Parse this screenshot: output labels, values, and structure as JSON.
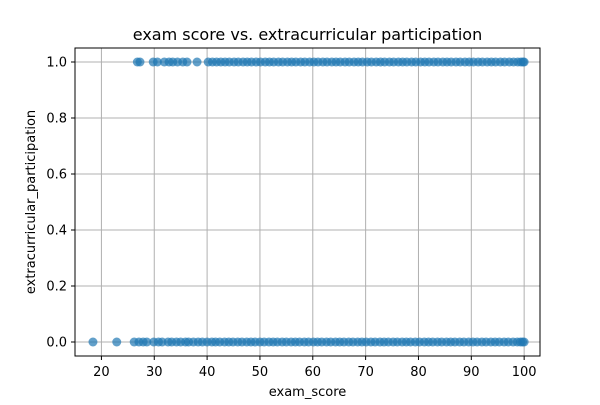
{
  "chart_data": {
    "type": "scatter",
    "title": "exam score vs. extracurricular participation",
    "xlabel": "exam_score",
    "ylabel": "extracurricular_participation",
    "xlim": [
      15,
      103
    ],
    "ylim": [
      -0.05,
      1.05
    ],
    "x_ticks": [
      20,
      30,
      40,
      50,
      60,
      70,
      80,
      90,
      100
    ],
    "x_tick_labels": [
      "20",
      "30",
      "40",
      "50",
      "60",
      "70",
      "80",
      "90",
      "100"
    ],
    "y_ticks": [
      0.0,
      0.2,
      0.4,
      0.6,
      0.8,
      1.0
    ],
    "y_tick_labels": [
      "0.0",
      "0.2",
      "0.4",
      "0.6",
      "0.8",
      "1.0"
    ],
    "grid": true,
    "marker_color": "#1f77b4",
    "series": [
      {
        "points": [
          [
            18.4,
            0
          ],
          [
            22.9,
            0
          ],
          [
            26.2,
            0
          ],
          [
            27.1,
            0
          ],
          [
            27.9,
            0
          ],
          [
            28.6,
            0
          ],
          [
            29.9,
            0
          ],
          [
            30.8,
            0
          ],
          [
            31.5,
            0
          ],
          [
            32.6,
            0
          ],
          [
            33.3,
            0
          ],
          [
            34.2,
            0
          ],
          [
            35.0,
            0
          ],
          [
            35.9,
            0
          ],
          [
            36.5,
            0
          ],
          [
            37.4,
            0
          ],
          [
            38.3,
            0
          ],
          [
            39.1,
            0
          ],
          [
            40.0,
            0
          ],
          [
            40.9,
            0
          ],
          [
            41.6,
            0
          ],
          [
            42.4,
            0
          ],
          [
            43.3,
            0
          ],
          [
            44.1,
            0
          ],
          [
            44.9,
            0
          ],
          [
            45.8,
            0
          ],
          [
            46.6,
            0
          ],
          [
            47.5,
            0
          ],
          [
            48.3,
            0
          ],
          [
            49.1,
            0
          ],
          [
            50.0,
            0
          ],
          [
            50.8,
            0
          ],
          [
            51.7,
            0
          ],
          [
            52.5,
            0
          ],
          [
            53.3,
            0
          ],
          [
            54.2,
            0
          ],
          [
            55.0,
            0
          ],
          [
            55.9,
            0
          ],
          [
            56.7,
            0
          ],
          [
            57.5,
            0
          ],
          [
            58.4,
            0
          ],
          [
            59.2,
            0
          ],
          [
            60.1,
            0
          ],
          [
            60.9,
            0
          ],
          [
            61.7,
            0
          ],
          [
            62.6,
            0
          ],
          [
            63.4,
            0
          ],
          [
            64.3,
            0
          ],
          [
            65.1,
            0
          ],
          [
            65.9,
            0
          ],
          [
            66.8,
            0
          ],
          [
            67.6,
            0
          ],
          [
            68.5,
            0
          ],
          [
            69.3,
            0
          ],
          [
            70.1,
            0
          ],
          [
            71.0,
            0
          ],
          [
            71.8,
            0
          ],
          [
            72.7,
            0
          ],
          [
            73.5,
            0
          ],
          [
            74.3,
            0
          ],
          [
            75.2,
            0
          ],
          [
            76.0,
            0
          ],
          [
            76.9,
            0
          ],
          [
            77.7,
            0
          ],
          [
            78.5,
            0
          ],
          [
            79.4,
            0
          ],
          [
            80.2,
            0
          ],
          [
            81.1,
            0
          ],
          [
            81.9,
            0
          ],
          [
            82.7,
            0
          ],
          [
            83.6,
            0
          ],
          [
            84.4,
            0
          ],
          [
            85.3,
            0
          ],
          [
            86.1,
            0
          ],
          [
            86.9,
            0
          ],
          [
            87.8,
            0
          ],
          [
            88.6,
            0
          ],
          [
            89.5,
            0
          ],
          [
            90.3,
            0
          ],
          [
            91.1,
            0
          ],
          [
            92.0,
            0
          ],
          [
            92.8,
            0
          ],
          [
            93.7,
            0
          ],
          [
            94.5,
            0
          ],
          [
            95.3,
            0
          ],
          [
            96.2,
            0
          ],
          [
            97.0,
            0
          ],
          [
            97.9,
            0
          ],
          [
            98.7,
            0
          ],
          [
            99.3,
            0
          ],
          [
            99.7,
            0
          ],
          [
            100.0,
            0
          ],
          [
            26.8,
            1
          ],
          [
            27.3,
            1
          ],
          [
            29.8,
            1
          ],
          [
            30.6,
            1
          ],
          [
            31.9,
            1
          ],
          [
            32.8,
            1
          ],
          [
            33.5,
            1
          ],
          [
            34.4,
            1
          ],
          [
            35.4,
            1
          ],
          [
            36.2,
            1
          ],
          [
            38.1,
            1
          ],
          [
            40.2,
            1
          ],
          [
            41.0,
            1
          ],
          [
            41.8,
            1
          ],
          [
            42.6,
            1
          ],
          [
            43.4,
            1
          ],
          [
            44.2,
            1
          ],
          [
            45.1,
            1
          ],
          [
            45.9,
            1
          ],
          [
            46.8,
            1
          ],
          [
            47.6,
            1
          ],
          [
            48.4,
            1
          ],
          [
            49.3,
            1
          ],
          [
            50.1,
            1
          ],
          [
            51.0,
            1
          ],
          [
            51.8,
            1
          ],
          [
            52.6,
            1
          ],
          [
            53.5,
            1
          ],
          [
            54.3,
            1
          ],
          [
            55.2,
            1
          ],
          [
            56.0,
            1
          ],
          [
            56.8,
            1
          ],
          [
            57.7,
            1
          ],
          [
            58.5,
            1
          ],
          [
            59.4,
            1
          ],
          [
            60.2,
            1
          ],
          [
            61.0,
            1
          ],
          [
            61.9,
            1
          ],
          [
            62.7,
            1
          ],
          [
            63.6,
            1
          ],
          [
            64.4,
            1
          ],
          [
            65.2,
            1
          ],
          [
            66.1,
            1
          ],
          [
            66.9,
            1
          ],
          [
            67.8,
            1
          ],
          [
            68.6,
            1
          ],
          [
            69.4,
            1
          ],
          [
            70.3,
            1
          ],
          [
            71.1,
            1
          ],
          [
            72.0,
            1
          ],
          [
            72.8,
            1
          ],
          [
            73.6,
            1
          ],
          [
            74.5,
            1
          ],
          [
            75.3,
            1
          ],
          [
            76.2,
            1
          ],
          [
            77.0,
            1
          ],
          [
            77.8,
            1
          ],
          [
            78.7,
            1
          ],
          [
            79.5,
            1
          ],
          [
            80.4,
            1
          ],
          [
            81.2,
            1
          ],
          [
            82.0,
            1
          ],
          [
            82.9,
            1
          ],
          [
            83.7,
            1
          ],
          [
            84.6,
            1
          ],
          [
            85.4,
            1
          ],
          [
            86.2,
            1
          ],
          [
            87.1,
            1
          ],
          [
            87.9,
            1
          ],
          [
            88.8,
            1
          ],
          [
            89.6,
            1
          ],
          [
            90.4,
            1
          ],
          [
            91.3,
            1
          ],
          [
            92.1,
            1
          ],
          [
            93.0,
            1
          ],
          [
            93.8,
            1
          ],
          [
            94.6,
            1
          ],
          [
            95.5,
            1
          ],
          [
            96.3,
            1
          ],
          [
            97.2,
            1
          ],
          [
            98.0,
            1
          ],
          [
            98.8,
            1
          ],
          [
            99.4,
            1
          ],
          [
            99.8,
            1
          ],
          [
            100.0,
            1
          ]
        ]
      }
    ]
  }
}
